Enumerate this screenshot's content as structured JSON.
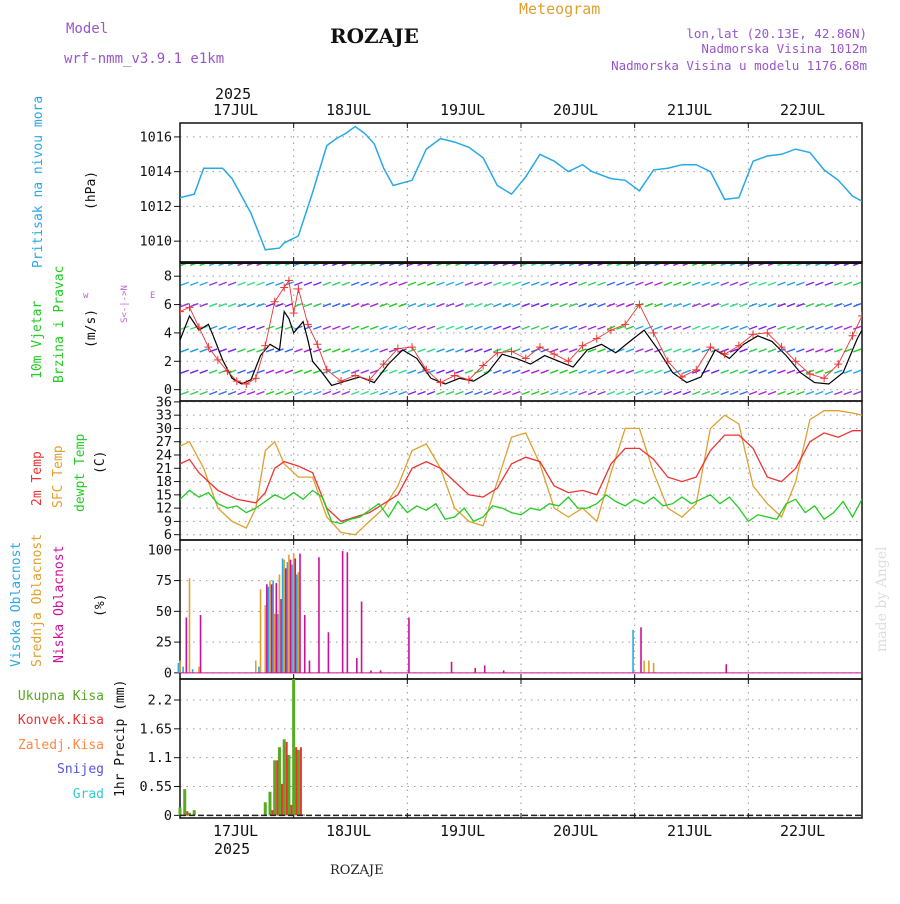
{
  "header": {
    "model_label": "Model",
    "model_name": "wrf-nmm_v3.9.1  e1km",
    "station": "ROZAJE",
    "meteogram": "Meteogram",
    "lonlat": "lon,lat (20.13E, 42.86N)",
    "elevation": "Nadmorska Visina 1012m",
    "model_elevation": "Nadmorska Visina u modelu 1176.68m",
    "footer_station": "ROZAJE",
    "watermark": "made by Angel"
  },
  "time_axis": {
    "year": "2025",
    "days": [
      "17JUL",
      "18JUL",
      "19JUL",
      "20JUL",
      "21JUL",
      "22JUL"
    ],
    "start_hour": -13,
    "end_hour": 131
  },
  "colors": {
    "pressure": "#29a8e8",
    "wind_speed": "#000000",
    "wind_gust": "#ee3333",
    "temp_2m": "#ee3333",
    "sfc_temp": "#e0a030",
    "dewpoint": "#22cc22",
    "high_cloud": "#29a8e8",
    "mid_cloud": "#e0a030",
    "low_cloud": "#cc1199",
    "total_precip": "#55aa22",
    "convective_precip": "#ee3333",
    "snow": "#5555dd"
  },
  "chart_data": [
    {
      "type": "line",
      "panel": "pressure",
      "ylabel": "Pritisak na nivou mora",
      "unit": "(hPa)",
      "yticks": [
        1010,
        1012,
        1014,
        1016
      ],
      "ylim": [
        1008.8,
        1016.8
      ],
      "series": [
        {
          "key": "mslp",
          "x": [
            -13,
            -10,
            -8,
            -4,
            -2,
            2,
            5,
            8,
            9,
            12,
            15,
            18,
            20,
            22,
            24,
            26,
            28,
            30,
            32,
            36,
            39,
            42,
            45,
            48,
            51,
            54,
            57,
            60,
            63,
            66,
            69,
            72,
            74,
            78,
            81,
            84,
            87,
            90,
            93,
            96,
            99,
            102,
            105,
            108,
            111,
            114,
            117,
            120,
            123,
            126,
            129,
            131
          ],
          "y": [
            1012.5,
            1012.7,
            1014.2,
            1014.2,
            1013.6,
            1011.6,
            1009.5,
            1009.6,
            1009.9,
            1010.3,
            1012.8,
            1015.5,
            1015.9,
            1016.2,
            1016.6,
            1016.2,
            1015.6,
            1014.2,
            1013.2,
            1013.5,
            1015.3,
            1015.9,
            1015.7,
            1015.4,
            1014.8,
            1013.2,
            1012.7,
            1013.7,
            1015.0,
            1014.6,
            1014.0,
            1014.4,
            1014.0,
            1013.6,
            1013.5,
            1012.9,
            1014.1,
            1014.2,
            1014.4,
            1014.4,
            1014.0,
            1012.4,
            1012.5,
            1014.6,
            1014.9,
            1015.0,
            1015.3,
            1015.1,
            1014.1,
            1013.5,
            1012.6,
            1012.3
          ]
        }
      ]
    },
    {
      "type": "line",
      "panel": "wind",
      "ylabel": "10m Vjetar Brzina i Pravac",
      "unit": "(m/s)",
      "direction_legend": [
        "w",
        "<-|->",
        "E"
      ],
      "direction_legend_v": [
        "N",
        "S"
      ],
      "yticks": [
        0,
        2,
        4,
        6,
        8
      ],
      "ylim": [
        -0.8,
        9.0
      ],
      "series": [
        {
          "key": "speed",
          "x": [
            -13,
            -11,
            -9,
            -7,
            -6,
            -4,
            -2,
            0,
            2,
            4,
            6,
            8,
            9,
            10,
            11,
            13,
            14,
            15,
            17,
            19,
            22,
            25,
            28,
            31,
            34,
            37,
            40,
            43,
            46,
            49,
            52,
            55,
            58,
            61,
            64,
            67,
            70,
            73,
            76,
            79,
            82,
            85,
            88,
            91,
            94,
            97,
            100,
            103,
            106,
            109,
            112,
            115,
            118,
            121,
            124,
            127,
            130,
            131
          ],
          "y": [
            3.5,
            5.2,
            4.2,
            4.6,
            3.8,
            2.1,
            0.8,
            0.4,
            0.7,
            2.4,
            3.2,
            2.8,
            5.5,
            5.0,
            4.0,
            4.8,
            3.5,
            2.0,
            1.2,
            0.3,
            0.6,
            0.9,
            0.5,
            1.8,
            2.8,
            2.2,
            0.8,
            0.4,
            0.8,
            0.6,
            1.2,
            2.5,
            2.2,
            1.8,
            2.4,
            2.0,
            1.6,
            2.8,
            3.2,
            2.6,
            3.4,
            4.2,
            2.8,
            1.2,
            0.5,
            0.9,
            2.8,
            2.2,
            3.2,
            3.8,
            3.4,
            2.4,
            1.2,
            0.5,
            0.4,
            1.2,
            3.6,
            4.2
          ]
        },
        {
          "key": "gust",
          "x": [
            -13,
            -11,
            -9,
            -7,
            -5,
            -3,
            -1,
            1,
            3,
            5,
            7,
            9,
            10,
            11,
            12,
            14,
            16,
            18,
            21,
            24,
            27,
            30,
            33,
            36,
            39,
            42,
            45,
            48,
            51,
            54,
            57,
            60,
            63,
            66,
            69,
            72,
            75,
            78,
            81,
            84,
            87,
            90,
            93,
            96,
            99,
            102,
            105,
            108,
            111,
            114,
            117,
            120,
            123,
            126,
            129,
            131
          ],
          "y": [
            5.5,
            5.8,
            4.4,
            3.0,
            2.1,
            1.3,
            0.6,
            0.4,
            0.8,
            3.1,
            6.2,
            7.2,
            7.7,
            5.4,
            7.1,
            4.6,
            3.2,
            1.4,
            0.6,
            1.0,
            0.7,
            1.8,
            2.9,
            3.0,
            1.4,
            0.5,
            1.0,
            0.7,
            1.7,
            2.6,
            2.7,
            2.2,
            3.0,
            2.5,
            2.0,
            3.1,
            3.6,
            4.2,
            4.6,
            6.0,
            4.0,
            2.0,
            0.9,
            1.4,
            3.0,
            2.5,
            3.1,
            3.9,
            4.0,
            3.0,
            2.0,
            1.1,
            0.8,
            1.8,
            3.8,
            5.2
          ]
        }
      ]
    },
    {
      "type": "line",
      "panel": "temperature",
      "ylabel": [
        "2m Temp",
        "SFC Temp",
        "dewpt Temp"
      ],
      "unit": "(C)",
      "yticks": [
        6,
        9,
        12,
        15,
        18,
        21,
        24,
        27,
        30,
        33,
        36
      ],
      "ylim": [
        4.8,
        36.2
      ],
      "series": [
        {
          "key": "t2m",
          "x": [
            -13,
            -11,
            -9,
            -5,
            -1,
            3,
            5,
            7,
            9,
            12,
            15,
            18,
            21,
            24,
            27,
            30,
            33,
            36,
            39,
            42,
            45,
            48,
            51,
            54,
            57,
            60,
            63,
            66,
            69,
            72,
            75,
            78,
            81,
            84,
            87,
            90,
            93,
            96,
            99,
            102,
            105,
            108,
            111,
            114,
            117,
            120,
            123,
            126,
            129,
            131
          ],
          "y": [
            22.0,
            23.0,
            20.0,
            16.0,
            14.0,
            13.2,
            15.5,
            21.0,
            22.5,
            21.5,
            20.0,
            12.0,
            9.0,
            10.0,
            11.0,
            13.0,
            15.0,
            21.0,
            22.5,
            21.0,
            18.0,
            15.0,
            14.5,
            16.5,
            22.0,
            23.5,
            22.5,
            17.0,
            15.5,
            16.0,
            15.0,
            22.0,
            25.5,
            25.5,
            23.0,
            19.0,
            18.0,
            19.0,
            25.0,
            28.5,
            28.5,
            25.5,
            19.0,
            18.0,
            21.0,
            27.0,
            29.0,
            28.0,
            29.5,
            29.5
          ]
        },
        {
          "key": "sfc",
          "x": [
            -13,
            -11,
            -8,
            -5,
            -2,
            1,
            3,
            5,
            7,
            9,
            12,
            15,
            18,
            21,
            24,
            27,
            30,
            33,
            36,
            39,
            42,
            45,
            48,
            51,
            54,
            57,
            60,
            63,
            66,
            69,
            72,
            75,
            78,
            81,
            84,
            87,
            90,
            93,
            96,
            99,
            102,
            105,
            108,
            111,
            114,
            117,
            120,
            123,
            126,
            129,
            131
          ],
          "y": [
            26.0,
            27.0,
            21.0,
            12.0,
            9.0,
            7.5,
            12.0,
            25.0,
            27.0,
            22.0,
            19.0,
            19.0,
            10.0,
            6.5,
            6.0,
            9.0,
            12.0,
            17.0,
            25.0,
            26.5,
            21.0,
            12.0,
            9.0,
            8.0,
            18.0,
            28.0,
            29.0,
            22.0,
            12.0,
            10.0,
            12.0,
            9.0,
            20.0,
            30.0,
            30.0,
            20.0,
            12.0,
            10.0,
            13.0,
            30.0,
            33.0,
            31.0,
            17.0,
            13.0,
            10.0,
            18.0,
            32.0,
            34.0,
            34.0,
            33.5,
            33.0
          ]
        },
        {
          "key": "dewpt",
          "x": [
            -13,
            -11,
            -9,
            -7,
            -5,
            -3,
            -1,
            1,
            3,
            5,
            7,
            9,
            11,
            13,
            15,
            17,
            19,
            21,
            23,
            25,
            27,
            29,
            31,
            33,
            35,
            37,
            39,
            41,
            43,
            45,
            47,
            49,
            51,
            53,
            55,
            57,
            59,
            61,
            63,
            65,
            67,
            69,
            71,
            73,
            75,
            77,
            79,
            81,
            83,
            85,
            87,
            89,
            91,
            93,
            95,
            97,
            99,
            101,
            103,
            105,
            107,
            109,
            111,
            113,
            115,
            117,
            119,
            121,
            123,
            125,
            127,
            129,
            131
          ],
          "y": [
            14.0,
            16.0,
            14.5,
            15.5,
            13.0,
            12.0,
            12.5,
            11.0,
            12.0,
            13.5,
            15.0,
            14.0,
            15.5,
            14.0,
            16.0,
            14.5,
            9.0,
            8.5,
            9.5,
            10.0,
            11.5,
            13.0,
            10.0,
            13.5,
            11.0,
            12.5,
            11.5,
            13.0,
            9.5,
            10.0,
            12.0,
            9.0,
            10.0,
            12.5,
            12.0,
            11.0,
            10.5,
            12.0,
            11.5,
            13.0,
            12.5,
            14.5,
            12.0,
            12.0,
            13.0,
            15.0,
            13.5,
            12.5,
            14.0,
            13.0,
            14.5,
            12.5,
            13.0,
            14.5,
            13.0,
            14.0,
            15.0,
            13.0,
            14.5,
            12.0,
            9.0,
            10.5,
            10.0,
            9.5,
            13.0,
            14.0,
            11.0,
            12.5,
            9.5,
            11.0,
            13.5,
            10.0,
            14.0
          ]
        }
      ]
    },
    {
      "type": "bar",
      "panel": "cloud",
      "ylabel": [
        "Visoka Oblacnost",
        "Srednja Oblacnost",
        "Niska Oblacnost"
      ],
      "unit": "(%)",
      "yticks": [
        0,
        25,
        50,
        75,
        100
      ],
      "ylim": [
        -5,
        108
      ],
      "series": [
        {
          "key": "high",
          "x": [
            -13,
            -12,
            -10,
            4,
            6,
            7,
            8,
            9,
            10,
            11,
            12,
            83
          ],
          "y": [
            8,
            5,
            3,
            5,
            70,
            75,
            48,
            93,
            90,
            88,
            80,
            35
          ]
        },
        {
          "key": "mid",
          "x": [
            -13,
            -11,
            -9,
            3,
            4,
            5,
            6,
            7,
            8,
            9,
            10,
            11,
            12,
            85,
            86,
            87
          ],
          "y": [
            10,
            77,
            5,
            10,
            68,
            55,
            75,
            48,
            80,
            92,
            96,
            97,
            82,
            10,
            10,
            8
          ]
        },
        {
          "key": "low",
          "x": [
            -12,
            -9,
            5,
            6,
            7,
            8,
            9,
            10,
            11,
            12,
            13,
            14,
            16,
            18,
            21,
            22,
            24,
            25,
            27,
            29,
            35,
            44,
            49,
            51,
            55,
            84,
            102
          ],
          "y": [
            45,
            47,
            72,
            72,
            73,
            60,
            85,
            92,
            93,
            97,
            47,
            10,
            94,
            33,
            99,
            98,
            12,
            58,
            2,
            2,
            45,
            9,
            4,
            6,
            2,
            37,
            7
          ]
        }
      ]
    },
    {
      "type": "bar",
      "panel": "precip",
      "ylabel": "1hr Precip (mm)",
      "legend": [
        "Ukupna Kisa",
        "Konvek.Kisa",
        "Zaledj.Kisa",
        "Snijeg",
        "Grad"
      ],
      "yticks": [
        0,
        0.55,
        1.1,
        1.65,
        2.2
      ],
      "ylim": [
        -0.05,
        2.6
      ],
      "series": [
        {
          "key": "total",
          "x": [
            -13,
            -12,
            -11,
            -10,
            5,
            6,
            7,
            8,
            9,
            10,
            11,
            12,
            13
          ],
          "y": [
            0.15,
            0.5,
            0.05,
            0.1,
            0.25,
            0.45,
            1.05,
            1.3,
            1.45,
            1.15,
            2.6,
            1.25,
            0.02
          ]
        },
        {
          "key": "convective",
          "x": [
            -12,
            6,
            7,
            8,
            9,
            10,
            11,
            12
          ],
          "y": [
            0.08,
            0.1,
            1.05,
            0.6,
            1.4,
            0.2,
            1.3,
            1.3
          ]
        }
      ]
    }
  ]
}
